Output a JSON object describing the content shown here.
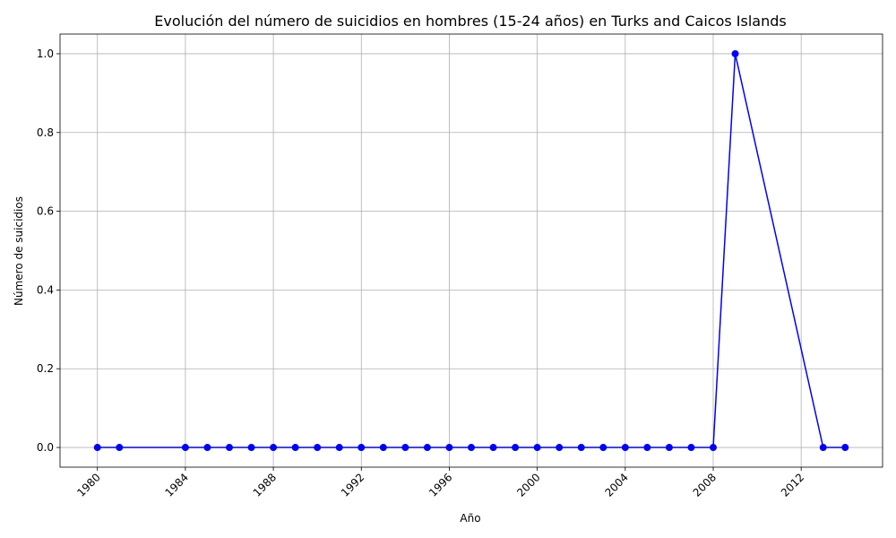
{
  "chart_data": {
    "type": "line",
    "title": "Evolución del número de suicidios en hombres (15-24 años) en Turks and Caicos Islands",
    "xlabel": "Año",
    "ylabel": "Número de suicidios",
    "xlim": [
      1978.3,
      2015.7
    ],
    "ylim": [
      -0.05,
      1.05
    ],
    "x_ticks": [
      1980,
      1984,
      1988,
      1992,
      1996,
      2000,
      2004,
      2008,
      2012
    ],
    "y_ticks": [
      "0.0",
      "0.2",
      "0.4",
      "0.6",
      "0.8",
      "1.0"
    ],
    "grid": true,
    "color": "#0000ff",
    "marker": "circle",
    "series": [
      {
        "x": [
          1980,
          1981,
          1984,
          1985,
          1986,
          1987,
          1988,
          1989,
          1990,
          1991,
          1992,
          1993,
          1994,
          1995,
          1996,
          1997,
          1998,
          1999,
          2000,
          2001,
          2002,
          2003,
          2004,
          2005,
          2006,
          2007,
          2008,
          2009,
          2013,
          2014
        ],
        "y": [
          0,
          0,
          0,
          0,
          0,
          0,
          0,
          0,
          0,
          0,
          0,
          0,
          0,
          0,
          0,
          0,
          0,
          0,
          0,
          0,
          0,
          0,
          0,
          0,
          0,
          0,
          0,
          1,
          0,
          0
        ]
      }
    ]
  }
}
